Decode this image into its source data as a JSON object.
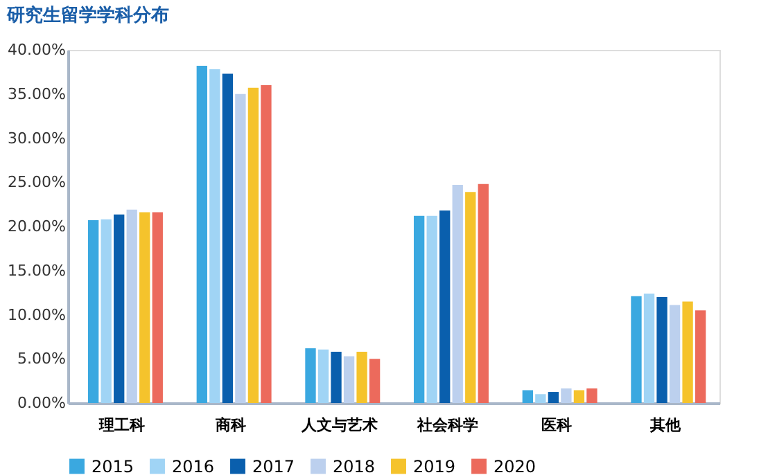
{
  "chart_data": {
    "type": "bar",
    "title": "研究生留学学科分布",
    "categories": [
      "理工科",
      "商科",
      "人文与艺术",
      "社会科学",
      "医科",
      "其他"
    ],
    "series": [
      {
        "name": "2015",
        "color": "#3aa8e0",
        "values": [
          20.7,
          38.2,
          6.2,
          21.2,
          1.45,
          12.1
        ]
      },
      {
        "name": "2016",
        "color": "#a0d4f5",
        "values": [
          20.8,
          37.8,
          6.05,
          21.2,
          1.0,
          12.4
        ]
      },
      {
        "name": "2017",
        "color": "#0a5fad",
        "values": [
          21.35,
          37.3,
          5.8,
          21.8,
          1.25,
          12.0
        ]
      },
      {
        "name": "2018",
        "color": "#bcd0ee",
        "values": [
          21.9,
          35.0,
          5.3,
          24.7,
          1.65,
          11.1
        ]
      },
      {
        "name": "2019",
        "color": "#f5c32c",
        "values": [
          21.6,
          35.7,
          5.8,
          23.9,
          1.45,
          11.5
        ]
      },
      {
        "name": "2020",
        "color": "#ec6a5c",
        "values": [
          21.6,
          36.0,
          5.0,
          24.8,
          1.65,
          10.5
        ]
      }
    ],
    "ylim": [
      0,
      40
    ],
    "yticks": [
      {
        "value": 0,
        "label": "0.00%"
      },
      {
        "value": 5,
        "label": "5.00%"
      },
      {
        "value": 10,
        "label": "10.00%"
      },
      {
        "value": 15,
        "label": "15.00%"
      },
      {
        "value": 20,
        "label": "20.00%"
      },
      {
        "value": 25,
        "label": "25.00%"
      },
      {
        "value": 30,
        "label": "30.00%"
      },
      {
        "value": 35,
        "label": "35.00%"
      },
      {
        "value": 40,
        "label": "40.00%"
      }
    ],
    "grid": false,
    "legend": "bottom"
  }
}
